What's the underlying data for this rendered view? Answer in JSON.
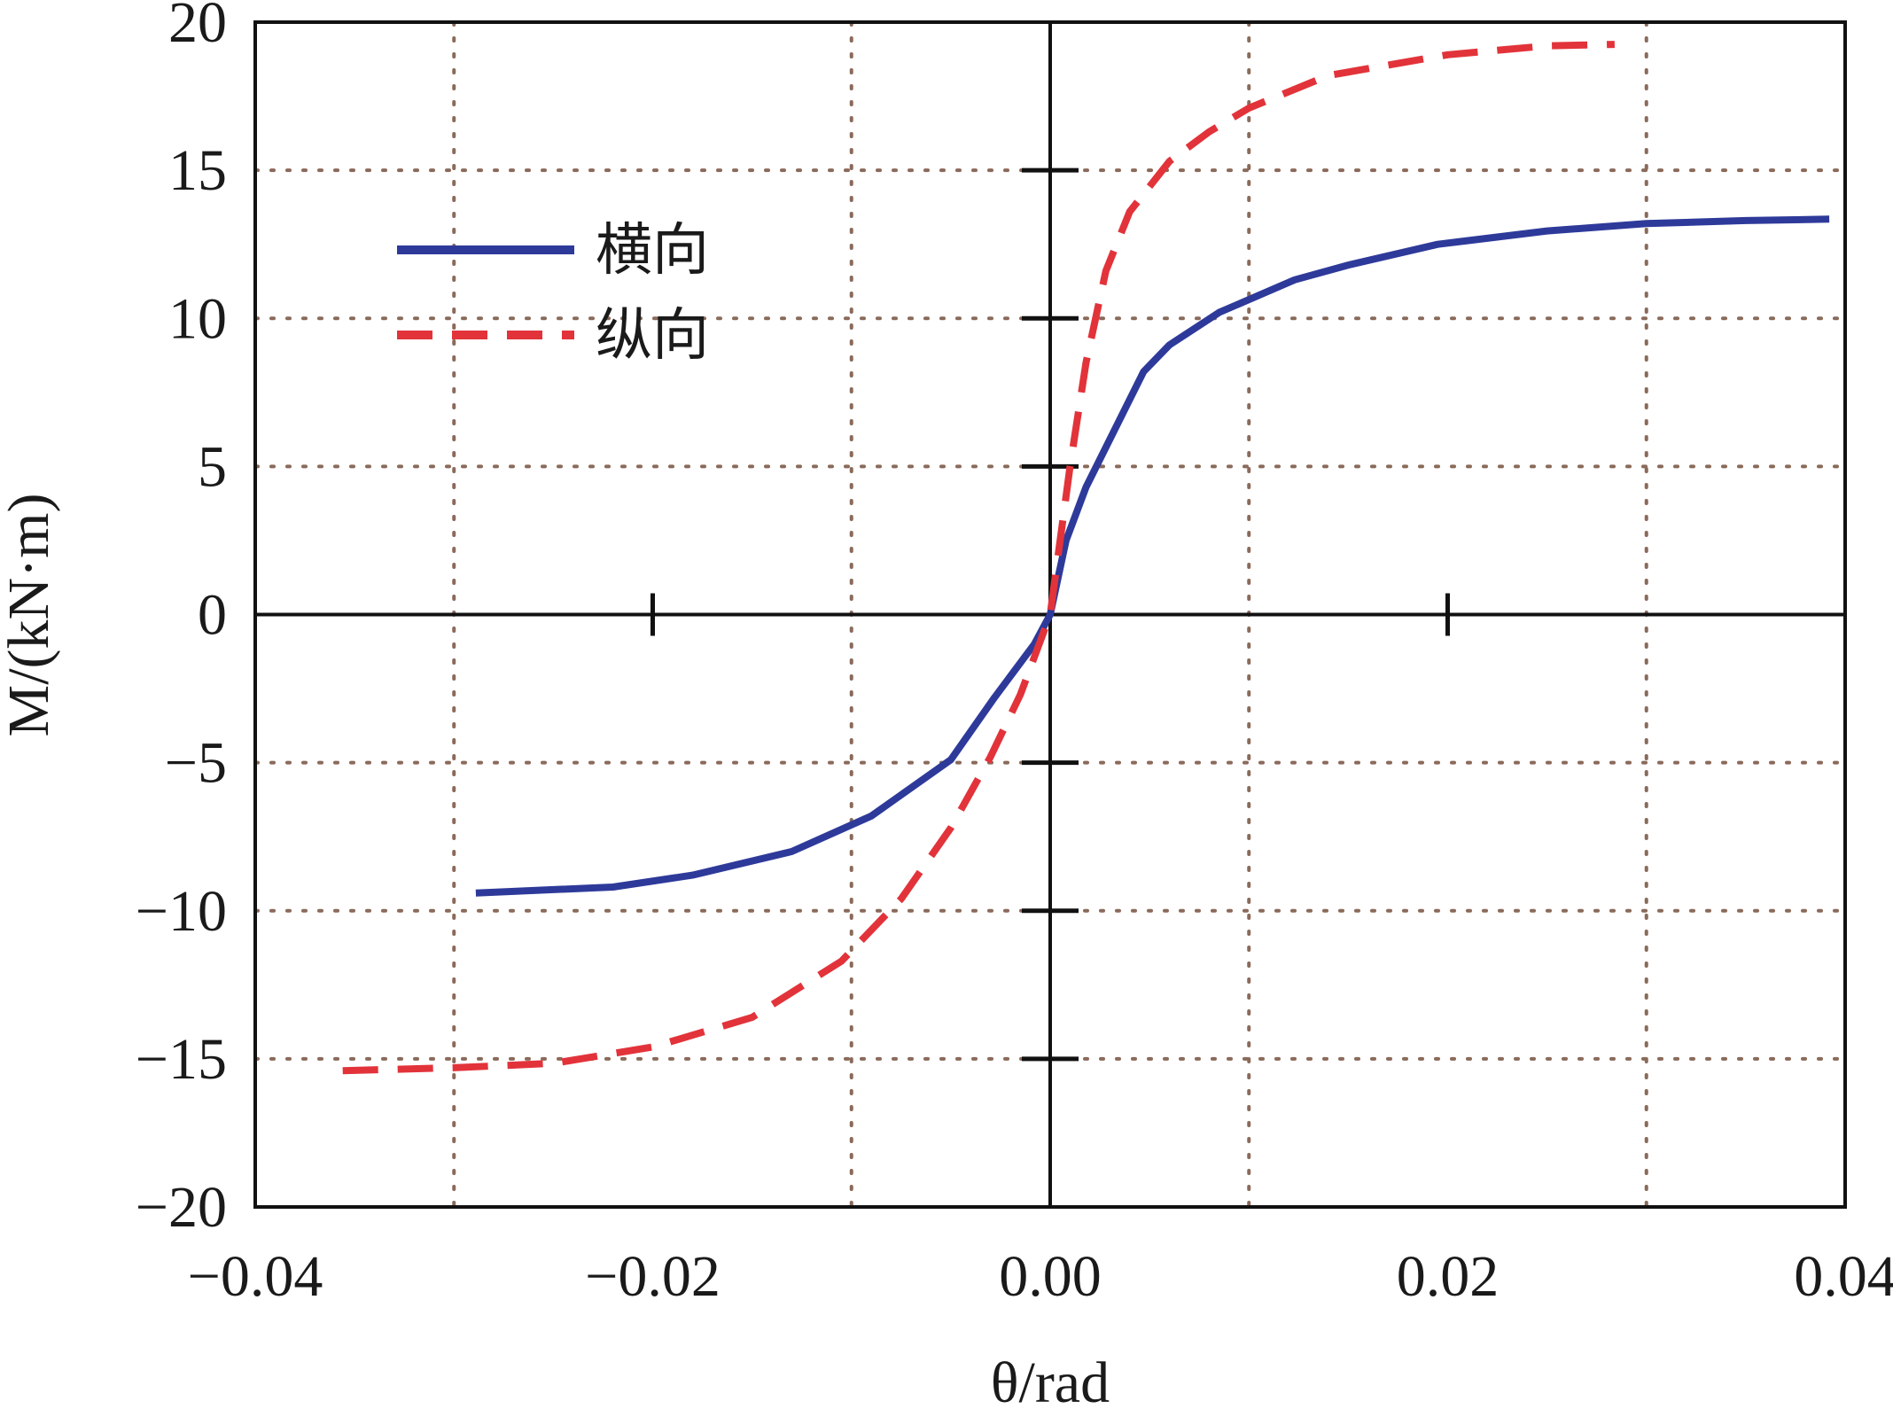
{
  "chart_data": {
    "type": "line",
    "xlabel": "θ/rad",
    "ylabel": "M/(kN·m)",
    "xlim": [
      -0.04,
      0.04
    ],
    "ylim": [
      -20,
      20
    ],
    "xticks": [
      -0.04,
      -0.02,
      0.0,
      0.02,
      0.04
    ],
    "xtick_labels": [
      "−0.04",
      "−0.02",
      "0.00",
      "0.02",
      "0.04"
    ],
    "yticks": [
      -20,
      -15,
      -10,
      -5,
      0,
      5,
      10,
      15,
      20
    ],
    "ytick_labels": [
      "−20",
      "−15",
      "−10",
      "−5",
      "0",
      "5",
      "10",
      "15",
      "20"
    ],
    "grid": true,
    "legend_position": "upper-left",
    "series": [
      {
        "name": "横向",
        "style": "solid",
        "color": "#2e3a9a",
        "x": [
          -0.0289,
          -0.022,
          -0.018,
          -0.013,
          -0.009,
          -0.005,
          -0.0028,
          -0.0008,
          0.0,
          0.0008,
          0.0018,
          0.0047,
          0.006,
          0.0085,
          0.0123,
          0.015,
          0.0195,
          0.025,
          0.03,
          0.035,
          0.0392
        ],
        "y": [
          -9.4,
          -9.2,
          -8.8,
          -8.0,
          -6.8,
          -4.9,
          -2.8,
          -1.0,
          0.0,
          2.5,
          4.3,
          8.2,
          9.1,
          10.2,
          11.3,
          11.8,
          12.5,
          12.95,
          13.2,
          13.3,
          13.35
        ]
      },
      {
        "name": "纵向",
        "style": "dashed",
        "color": "#e2333a",
        "x": [
          -0.0356,
          -0.03,
          -0.025,
          -0.02,
          -0.015,
          -0.0105,
          -0.0075,
          -0.005,
          -0.003,
          -0.0015,
          0.0,
          0.001,
          0.0018,
          0.0028,
          0.004,
          0.006,
          0.008,
          0.01,
          0.014,
          0.02,
          0.025,
          0.0284
        ],
        "y": [
          -15.4,
          -15.3,
          -15.15,
          -14.6,
          -13.6,
          -11.7,
          -9.6,
          -7.2,
          -4.8,
          -2.7,
          0.0,
          5.0,
          8.5,
          11.6,
          13.6,
          15.3,
          16.3,
          17.1,
          18.2,
          18.9,
          19.2,
          19.25
        ]
      }
    ]
  }
}
